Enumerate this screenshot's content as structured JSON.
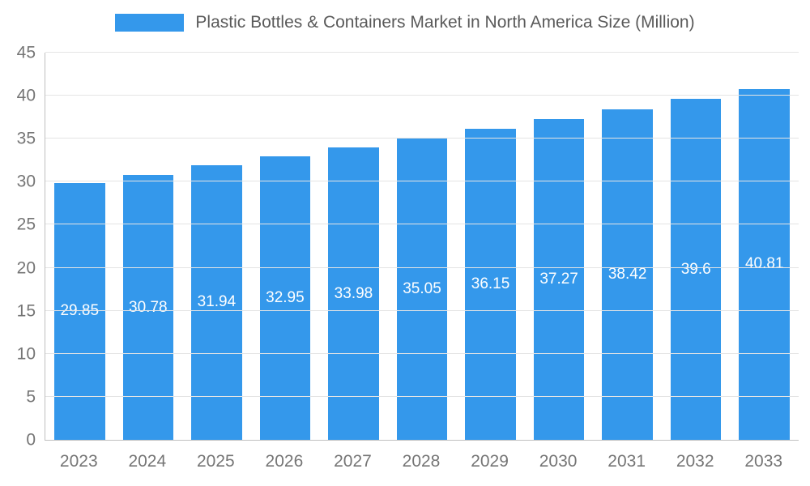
{
  "chart_data": {
    "type": "bar",
    "title": "Plastic Bottles & Containers Market in North America Size (Million)",
    "categories": [
      "2023",
      "2024",
      "2025",
      "2026",
      "2027",
      "2028",
      "2029",
      "2030",
      "2031",
      "2032",
      "2033"
    ],
    "values": [
      29.85,
      30.78,
      31.94,
      32.95,
      33.98,
      35.05,
      36.15,
      37.27,
      38.42,
      39.6,
      40.81
    ],
    "value_labels": [
      "29.85",
      "30.78",
      "31.94",
      "32.95",
      "33.98",
      "35.05",
      "36.15",
      "37.27",
      "38.42",
      "39.6",
      "40.81"
    ],
    "xlabel": "",
    "ylabel": "",
    "ylim": [
      0,
      45
    ],
    "yticks": [
      0,
      5,
      10,
      15,
      20,
      25,
      30,
      35,
      40,
      45
    ],
    "grid": true,
    "legend_position": "top-center",
    "colors": {
      "bar": "#3498EB",
      "grid": "#E4E4E4",
      "axis": "#C0C0C0",
      "tick_label": "#757575",
      "title": "#5A5A5A",
      "value_label": "#FFFFFF",
      "background": "#FFFFFF"
    }
  }
}
